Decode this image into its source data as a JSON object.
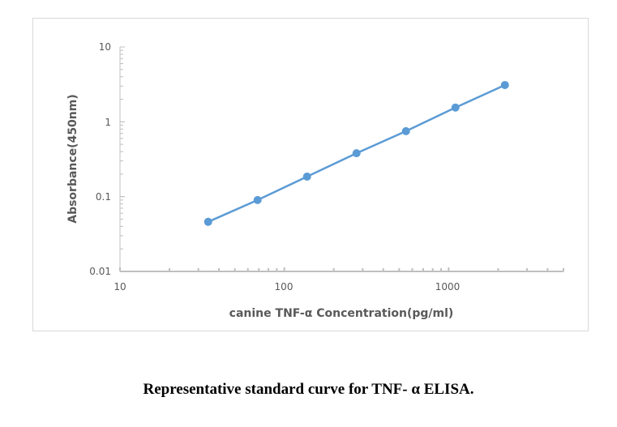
{
  "chart_data": {
    "type": "line",
    "title": "",
    "xlabel": "canine TNF-α Concentration(pg/ml)",
    "ylabel": "Absorbance(450nm)",
    "x_scale": "log",
    "y_scale": "log",
    "xlim": [
      10,
      5000
    ],
    "ylim": [
      0.01,
      10
    ],
    "x_ticks": [
      "10",
      "100",
      "1000"
    ],
    "y_ticks": [
      "0.01",
      "0.1",
      "1",
      "10"
    ],
    "grid": false,
    "color": "#5b9bd5",
    "series": [
      {
        "x": [
          34.4,
          68.75,
          137.5,
          275,
          550,
          1100,
          2200
        ],
        "y": [
          0.046,
          0.09,
          0.185,
          0.38,
          0.75,
          1.55,
          3.1
        ]
      }
    ]
  },
  "caption": "Representative standard curve for TNF- α   ELISA."
}
